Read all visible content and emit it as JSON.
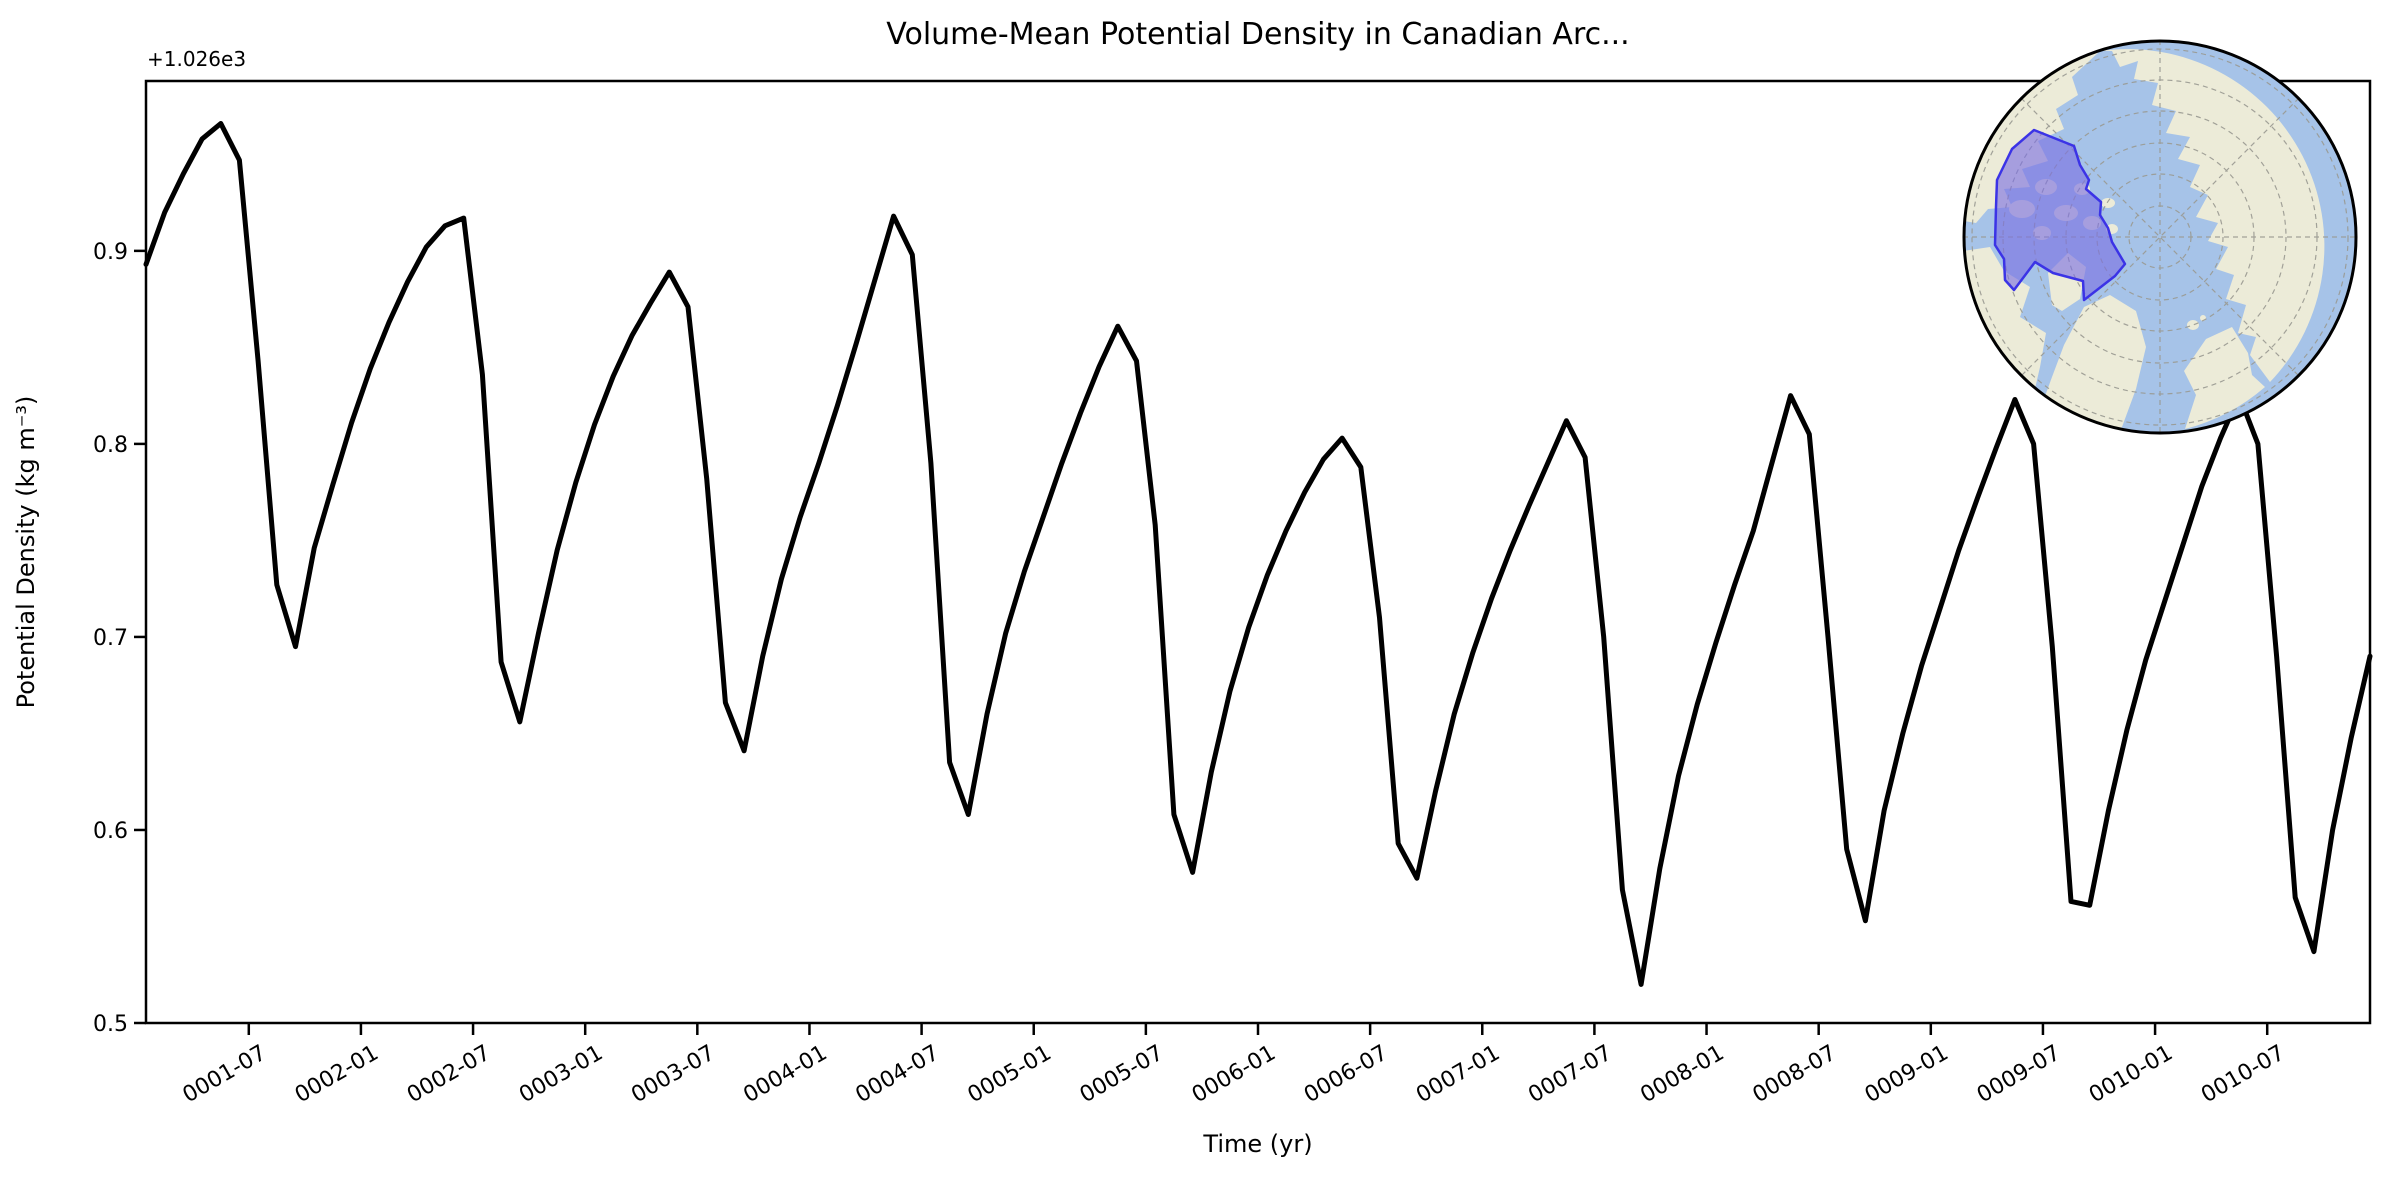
{
  "figure": {
    "title": "Volume-Mean Potential Density in Canadian Arc...",
    "offset_label": "+1.026e3",
    "xlabel": "Time (yr)",
    "ylabel": "Potential Density (kg m⁻³)"
  },
  "chart_data": {
    "type": "line",
    "title": "Volume-Mean Potential Density in Canadian Arc...",
    "xlabel": "Time (yr)",
    "ylabel": "Potential Density (kg m⁻³)",
    "y_offset_label": "+1.026e3",
    "y_offset_base": 1026,
    "grid": false,
    "legend": null,
    "line_color": "#000000",
    "line_width": 5,
    "ylim": [
      1026.5,
      1026.988
    ],
    "y_ticks": [
      1026.5,
      1026.6,
      1026.7,
      1026.8,
      1026.9
    ],
    "y_tick_labels": [
      "0.5",
      "0.6",
      "0.7",
      "0.8",
      "0.9"
    ],
    "x_tick_labels": [
      "0001-07",
      "0002-01",
      "0002-07",
      "0003-01",
      "0003-07",
      "0004-01",
      "0004-07",
      "0005-01",
      "0005-07",
      "0006-01",
      "0006-07",
      "0007-01",
      "0007-07",
      "0008-01",
      "0008-07",
      "0009-01",
      "0009-07",
      "0010-01",
      "0010-07"
    ],
    "x_start": "0001-01",
    "x_frequency": "monthly",
    "x": [
      "0001-01",
      "0001-02",
      "0001-03",
      "0001-04",
      "0001-05",
      "0001-06",
      "0001-07",
      "0001-08",
      "0001-09",
      "0001-10",
      "0001-11",
      "0001-12",
      "0002-01",
      "0002-02",
      "0002-03",
      "0002-04",
      "0002-05",
      "0002-06",
      "0002-07",
      "0002-08",
      "0002-09",
      "0002-10",
      "0002-11",
      "0002-12",
      "0003-01",
      "0003-02",
      "0003-03",
      "0003-04",
      "0003-05",
      "0003-06",
      "0003-07",
      "0003-08",
      "0003-09",
      "0003-10",
      "0003-11",
      "0003-12",
      "0004-01",
      "0004-02",
      "0004-03",
      "0004-04",
      "0004-05",
      "0004-06",
      "0004-07",
      "0004-08",
      "0004-09",
      "0004-10",
      "0004-11",
      "0004-12",
      "0005-01",
      "0005-02",
      "0005-03",
      "0005-04",
      "0005-05",
      "0005-06",
      "0005-07",
      "0005-08",
      "0005-09",
      "0005-10",
      "0005-11",
      "0005-12",
      "0006-01",
      "0006-02",
      "0006-03",
      "0006-04",
      "0006-05",
      "0006-06",
      "0006-07",
      "0006-08",
      "0006-09",
      "0006-10",
      "0006-11",
      "0006-12",
      "0007-01",
      "0007-02",
      "0007-03",
      "0007-04",
      "0007-05",
      "0007-06",
      "0007-07",
      "0007-08",
      "0007-09",
      "0007-10",
      "0007-11",
      "0007-12",
      "0008-01",
      "0008-02",
      "0008-03",
      "0008-04",
      "0008-05",
      "0008-06",
      "0008-07",
      "0008-08",
      "0008-09",
      "0008-10",
      "0008-11",
      "0008-12",
      "0009-01",
      "0009-02",
      "0009-03",
      "0009-04",
      "0009-05",
      "0009-06",
      "0009-07",
      "0009-08",
      "0009-09",
      "0009-10",
      "0009-11",
      "0009-12",
      "0010-01",
      "0010-02",
      "0010-03",
      "0010-04",
      "0010-05",
      "0010-06",
      "0010-07",
      "0010-08",
      "0010-09",
      "0010-10",
      "0010-11",
      "0010-12"
    ],
    "values": [
      1026.893,
      1026.92,
      1026.94,
      1026.958,
      1026.966,
      1026.947,
      1026.843,
      1026.727,
      1026.695,
      1026.746,
      1026.779,
      1026.811,
      1026.839,
      1026.863,
      1026.884,
      1026.902,
      1026.913,
      1026.917,
      1026.836,
      1026.687,
      1026.656,
      1026.702,
      1026.745,
      1026.78,
      1026.81,
      1026.835,
      1026.856,
      1026.873,
      1026.889,
      1026.871,
      1026.782,
      1026.666,
      1026.641,
      1026.69,
      1026.73,
      1026.762,
      1026.79,
      1026.82,
      1026.852,
      1026.885,
      1026.918,
      1026.898,
      1026.79,
      1026.635,
      1026.608,
      1026.66,
      1026.702,
      1026.734,
      1026.762,
      1026.79,
      1026.816,
      1026.84,
      1026.861,
      1026.843,
      1026.758,
      1026.608,
      1026.578,
      1026.63,
      1026.672,
      1026.705,
      1026.732,
      1026.755,
      1026.775,
      1026.792,
      1026.803,
      1026.788,
      1026.71,
      1026.593,
      1026.575,
      1026.62,
      1026.66,
      1026.692,
      1026.72,
      1026.745,
      1026.768,
      1026.79,
      1026.812,
      1026.793,
      1026.7,
      1026.569,
      1026.52,
      1026.58,
      1026.628,
      1026.665,
      1026.697,
      1026.727,
      1026.755,
      1026.79,
      1026.825,
      1026.805,
      1026.7,
      1026.59,
      1026.553,
      1026.61,
      1026.65,
      1026.685,
      1026.715,
      1026.745,
      1026.772,
      1026.798,
      1026.823,
      1026.8,
      1026.695,
      1026.563,
      1026.561,
      1026.61,
      1026.652,
      1026.688,
      1026.718,
      1026.748,
      1026.778,
      1026.803,
      1026.825,
      1026.8,
      1026.69,
      1026.565,
      1026.537,
      1026.6,
      1026.648,
      1026.69
    ]
  },
  "inset_map": {
    "projection": "north-polar",
    "highlighted_region": "Canadian Arctic Archipelago",
    "ocean_color": "#a6c3e8",
    "land_color": "#ecebd8",
    "region_fill": "#7b6fe2",
    "region_border": "#3b33e6",
    "graticule_color": "#9a9a92",
    "outline_color": "#000000"
  }
}
